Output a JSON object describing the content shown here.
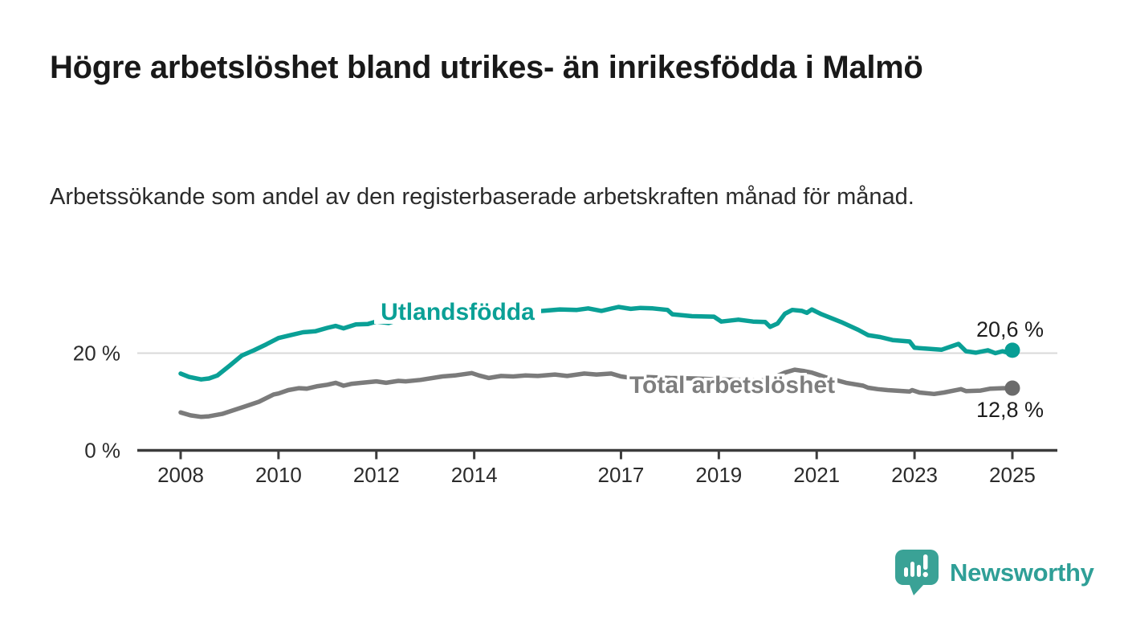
{
  "header": {
    "title": "Högre arbetslöshet bland utrikes- än inrikesfödda i Malmö",
    "subtitle": "Arbetssökande som andel av den registerbaserade arbetskraften månad för månad."
  },
  "chart_data": {
    "type": "line",
    "title": "",
    "xlabel": "",
    "ylabel": "",
    "x_range": [
      2008,
      2025.2
    ],
    "y_range": [
      0,
      32
    ],
    "x_ticks": [
      2008,
      2010,
      2012,
      2014,
      2017,
      2019,
      2021,
      2023,
      2025
    ],
    "y_ticks": [
      {
        "value": 0,
        "label": "0 %"
      },
      {
        "value": 20,
        "label": "20 %"
      }
    ],
    "grid": "single horizontal gridline at 20%",
    "legend_position": "inline labels on lines",
    "series": [
      {
        "name": "Utlandsfödda",
        "color": "#0aa096",
        "end_value": 20.6,
        "end_label": "20,6 %",
        "points": [
          [
            2008.0,
            15.8
          ],
          [
            2008.17,
            15.1
          ],
          [
            2008.42,
            14.6
          ],
          [
            2008.58,
            14.8
          ],
          [
            2008.75,
            15.4
          ],
          [
            2009.0,
            17.4
          ],
          [
            2009.25,
            19.5
          ],
          [
            2009.5,
            20.6
          ],
          [
            2009.75,
            21.8
          ],
          [
            2010.0,
            23.1
          ],
          [
            2010.25,
            23.7
          ],
          [
            2010.5,
            24.3
          ],
          [
            2010.75,
            24.5
          ],
          [
            2011.0,
            25.2
          ],
          [
            2011.17,
            25.6
          ],
          [
            2011.33,
            25.1
          ],
          [
            2011.58,
            25.9
          ],
          [
            2011.83,
            26.0
          ],
          [
            2012.0,
            26.5
          ],
          [
            2012.25,
            26.2
          ],
          [
            2012.5,
            27.0
          ],
          [
            2013.0,
            27.4
          ],
          [
            2013.5,
            27.8
          ],
          [
            2014.0,
            28.1
          ],
          [
            2014.5,
            28.3
          ],
          [
            2015.0,
            28.5
          ],
          [
            2015.4,
            28.7
          ],
          [
            2015.75,
            29.0
          ],
          [
            2016.1,
            28.9
          ],
          [
            2016.33,
            29.2
          ],
          [
            2016.6,
            28.7
          ],
          [
            2016.95,
            29.5
          ],
          [
            2017.2,
            29.1
          ],
          [
            2017.4,
            29.3
          ],
          [
            2017.65,
            29.2
          ],
          [
            2017.95,
            28.9
          ],
          [
            2018.05,
            28.0
          ],
          [
            2018.45,
            27.6
          ],
          [
            2018.9,
            27.5
          ],
          [
            2019.05,
            26.5
          ],
          [
            2019.4,
            26.9
          ],
          [
            2019.7,
            26.5
          ],
          [
            2019.95,
            26.4
          ],
          [
            2020.05,
            25.4
          ],
          [
            2020.2,
            26.1
          ],
          [
            2020.35,
            28.1
          ],
          [
            2020.5,
            28.9
          ],
          [
            2020.7,
            28.7
          ],
          [
            2020.8,
            28.3
          ],
          [
            2020.9,
            29.0
          ],
          [
            2021.1,
            28.0
          ],
          [
            2021.3,
            27.2
          ],
          [
            2021.5,
            26.4
          ],
          [
            2021.85,
            24.8
          ],
          [
            2022.05,
            23.7
          ],
          [
            2022.3,
            23.3
          ],
          [
            2022.55,
            22.7
          ],
          [
            2022.9,
            22.4
          ],
          [
            2023.0,
            21.1
          ],
          [
            2023.3,
            20.9
          ],
          [
            2023.55,
            20.7
          ],
          [
            2023.9,
            21.9
          ],
          [
            2024.05,
            20.4
          ],
          [
            2024.25,
            20.1
          ],
          [
            2024.5,
            20.6
          ],
          [
            2024.65,
            20.0
          ],
          [
            2024.8,
            20.4
          ],
          [
            2024.9,
            20.1
          ],
          [
            2025.0,
            20.6
          ]
        ]
      },
      {
        "name": "Total arbetslöshet",
        "color": "#7b7b7b",
        "end_value": 12.8,
        "end_label": "12,8 %",
        "points": [
          [
            2008.0,
            7.8
          ],
          [
            2008.2,
            7.2
          ],
          [
            2008.42,
            6.9
          ],
          [
            2008.58,
            7.0
          ],
          [
            2008.85,
            7.5
          ],
          [
            2009.0,
            8.0
          ],
          [
            2009.3,
            9.0
          ],
          [
            2009.6,
            10.0
          ],
          [
            2009.9,
            11.5
          ],
          [
            2010.0,
            11.7
          ],
          [
            2010.2,
            12.4
          ],
          [
            2010.42,
            12.8
          ],
          [
            2010.58,
            12.7
          ],
          [
            2010.8,
            13.2
          ],
          [
            2011.0,
            13.5
          ],
          [
            2011.17,
            13.9
          ],
          [
            2011.33,
            13.3
          ],
          [
            2011.5,
            13.7
          ],
          [
            2011.7,
            13.9
          ],
          [
            2012.0,
            14.2
          ],
          [
            2012.2,
            13.9
          ],
          [
            2012.45,
            14.3
          ],
          [
            2012.6,
            14.2
          ],
          [
            2012.9,
            14.5
          ],
          [
            2013.35,
            15.2
          ],
          [
            2013.6,
            15.4
          ],
          [
            2013.95,
            15.9
          ],
          [
            2014.1,
            15.4
          ],
          [
            2014.3,
            14.9
          ],
          [
            2014.55,
            15.3
          ],
          [
            2014.8,
            15.2
          ],
          [
            2015.05,
            15.4
          ],
          [
            2015.3,
            15.3
          ],
          [
            2015.65,
            15.6
          ],
          [
            2015.9,
            15.3
          ],
          [
            2016.25,
            15.8
          ],
          [
            2016.5,
            15.6
          ],
          [
            2016.8,
            15.8
          ],
          [
            2017.0,
            15.2
          ],
          [
            2017.15,
            15.0
          ],
          [
            2017.5,
            15.1
          ],
          [
            2018.0,
            14.9
          ],
          [
            2018.5,
            14.8
          ],
          [
            2019.0,
            14.6
          ],
          [
            2019.5,
            14.5
          ],
          [
            2019.9,
            14.4
          ],
          [
            2020.1,
            14.9
          ],
          [
            2020.35,
            16.0
          ],
          [
            2020.55,
            16.6
          ],
          [
            2020.75,
            16.3
          ],
          [
            2020.9,
            16.0
          ],
          [
            2021.2,
            15.0
          ],
          [
            2021.6,
            13.9
          ],
          [
            2021.95,
            13.3
          ],
          [
            2022.05,
            12.9
          ],
          [
            2022.25,
            12.6
          ],
          [
            2022.45,
            12.4
          ],
          [
            2022.9,
            12.1
          ],
          [
            2022.95,
            12.4
          ],
          [
            2023.1,
            11.9
          ],
          [
            2023.4,
            11.6
          ],
          [
            2023.6,
            11.9
          ],
          [
            2023.95,
            12.6
          ],
          [
            2024.05,
            12.2
          ],
          [
            2024.35,
            12.3
          ],
          [
            2024.55,
            12.7
          ],
          [
            2024.8,
            12.8
          ],
          [
            2025.0,
            12.8
          ]
        ]
      }
    ]
  },
  "footer": {
    "brand": "Newsworthy",
    "logo_icon": "bar-chart-speech-bubble-icon"
  },
  "colors": {
    "accent_teal": "#0aa096",
    "teal_dot": "#089e95",
    "line_gray": "#7b7b7b",
    "gray_dot": "#6b6b6b",
    "gray_label": "#7e7e7e",
    "axis": "#3c3c3c",
    "gridline": "#d9d9d9",
    "tick_text": "#2b2b2b",
    "value_label_text": "#1d1d1d",
    "brand_teal": "#3aa296"
  }
}
